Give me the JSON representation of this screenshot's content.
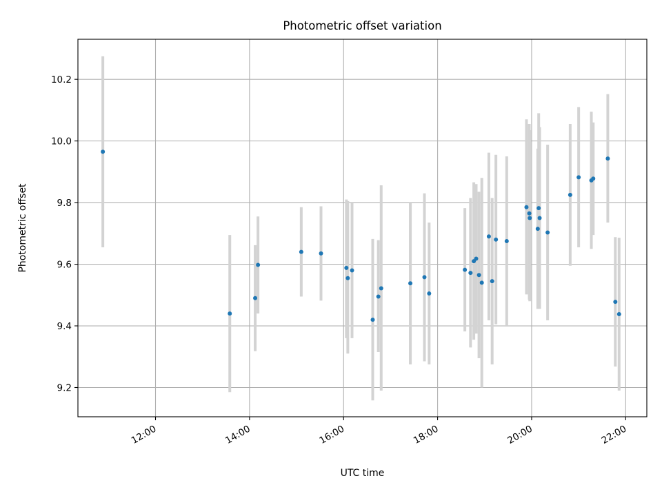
{
  "chart_data": {
    "type": "scatter",
    "title": "Photometric offset variation",
    "xlabel": "UTC time",
    "ylabel": "Photometric offset",
    "x_unit": "hours UTC",
    "xlim": [
      10.35,
      22.45
    ],
    "ylim": [
      9.105,
      10.33
    ],
    "x_ticks": [
      {
        "value": 12,
        "label": "12:00"
      },
      {
        "value": 14,
        "label": "14:00"
      },
      {
        "value": 16,
        "label": "16:00"
      },
      {
        "value": 18,
        "label": "18:00"
      },
      {
        "value": 20,
        "label": "20:00"
      },
      {
        "value": 22,
        "label": "22:00"
      }
    ],
    "y_ticks": [
      {
        "value": 9.2,
        "label": "9.2"
      },
      {
        "value": 9.4,
        "label": "9.4"
      },
      {
        "value": 9.6,
        "label": "9.6"
      },
      {
        "value": 9.8,
        "label": "9.8"
      },
      {
        "value": 10.0,
        "label": "10.0"
      },
      {
        "value": 10.2,
        "label": "10.2"
      }
    ],
    "grid": true,
    "colors": {
      "marker": "#1f77b4",
      "errorbar": "#d3d3d3",
      "grid": "#b0b0b0"
    },
    "points": [
      {
        "x": 10.88,
        "y": 9.965,
        "ylow": 9.655,
        "yhigh": 10.275
      },
      {
        "x": 13.58,
        "y": 9.44,
        "ylow": 9.185,
        "yhigh": 9.695
      },
      {
        "x": 14.12,
        "y": 9.49,
        "ylow": 9.318,
        "yhigh": 9.662
      },
      {
        "x": 14.18,
        "y": 9.598,
        "ylow": 9.44,
        "yhigh": 9.755
      },
      {
        "x": 15.1,
        "y": 9.64,
        "ylow": 9.495,
        "yhigh": 9.785
      },
      {
        "x": 15.52,
        "y": 9.635,
        "ylow": 9.482,
        "yhigh": 9.788
      },
      {
        "x": 16.06,
        "y": 9.588,
        "ylow": 9.36,
        "yhigh": 9.81
      },
      {
        "x": 16.09,
        "y": 9.555,
        "ylow": 9.31,
        "yhigh": 9.805
      },
      {
        "x": 16.18,
        "y": 9.58,
        "ylow": 9.36,
        "yhigh": 9.8
      },
      {
        "x": 16.62,
        "y": 9.42,
        "ylow": 9.158,
        "yhigh": 9.682
      },
      {
        "x": 16.74,
        "y": 9.495,
        "ylow": 9.315,
        "yhigh": 9.678
      },
      {
        "x": 16.8,
        "y": 9.522,
        "ylow": 9.19,
        "yhigh": 9.856
      },
      {
        "x": 17.42,
        "y": 9.538,
        "ylow": 9.275,
        "yhigh": 9.8
      },
      {
        "x": 17.72,
        "y": 9.558,
        "ylow": 9.285,
        "yhigh": 9.83
      },
      {
        "x": 17.82,
        "y": 9.505,
        "ylow": 9.275,
        "yhigh": 9.735
      },
      {
        "x": 18.58,
        "y": 9.582,
        "ylow": 9.382,
        "yhigh": 9.782
      },
      {
        "x": 18.7,
        "y": 9.572,
        "ylow": 9.33,
        "yhigh": 9.815
      },
      {
        "x": 18.77,
        "y": 9.61,
        "ylow": 9.355,
        "yhigh": 9.866
      },
      {
        "x": 18.82,
        "y": 9.618,
        "ylow": 9.375,
        "yhigh": 9.86
      },
      {
        "x": 18.88,
        "y": 9.565,
        "ylow": 9.295,
        "yhigh": 9.835
      },
      {
        "x": 18.94,
        "y": 9.54,
        "ylow": 9.2,
        "yhigh": 9.88
      },
      {
        "x": 19.09,
        "y": 9.69,
        "ylow": 9.418,
        "yhigh": 9.962
      },
      {
        "x": 19.16,
        "y": 9.545,
        "ylow": 9.275,
        "yhigh": 9.815
      },
      {
        "x": 19.24,
        "y": 9.68,
        "ylow": 9.405,
        "yhigh": 9.955
      },
      {
        "x": 19.47,
        "y": 9.675,
        "ylow": 9.402,
        "yhigh": 9.95
      },
      {
        "x": 19.89,
        "y": 9.785,
        "ylow": 9.502,
        "yhigh": 10.07
      },
      {
        "x": 19.95,
        "y": 9.765,
        "ylow": 9.485,
        "yhigh": 10.055
      },
      {
        "x": 19.96,
        "y": 9.75,
        "ylow": 9.48,
        "yhigh": 10.035
      },
      {
        "x": 20.13,
        "y": 9.715,
        "ylow": 9.455,
        "yhigh": 9.975
      },
      {
        "x": 20.15,
        "y": 9.782,
        "ylow": 9.475,
        "yhigh": 10.09
      },
      {
        "x": 20.17,
        "y": 9.75,
        "ylow": 9.455,
        "yhigh": 10.045
      },
      {
        "x": 20.34,
        "y": 9.703,
        "ylow": 9.418,
        "yhigh": 9.988
      },
      {
        "x": 20.82,
        "y": 9.825,
        "ylow": 9.595,
        "yhigh": 10.055
      },
      {
        "x": 21.0,
        "y": 9.882,
        "ylow": 9.655,
        "yhigh": 10.11
      },
      {
        "x": 21.27,
        "y": 9.872,
        "ylow": 9.65,
        "yhigh": 10.095
      },
      {
        "x": 21.31,
        "y": 9.878,
        "ylow": 9.695,
        "yhigh": 10.06
      },
      {
        "x": 21.62,
        "y": 9.943,
        "ylow": 9.735,
        "yhigh": 10.152
      },
      {
        "x": 21.78,
        "y": 9.478,
        "ylow": 9.268,
        "yhigh": 9.688
      },
      {
        "x": 21.86,
        "y": 9.438,
        "ylow": 9.19,
        "yhigh": 9.686
      }
    ]
  }
}
